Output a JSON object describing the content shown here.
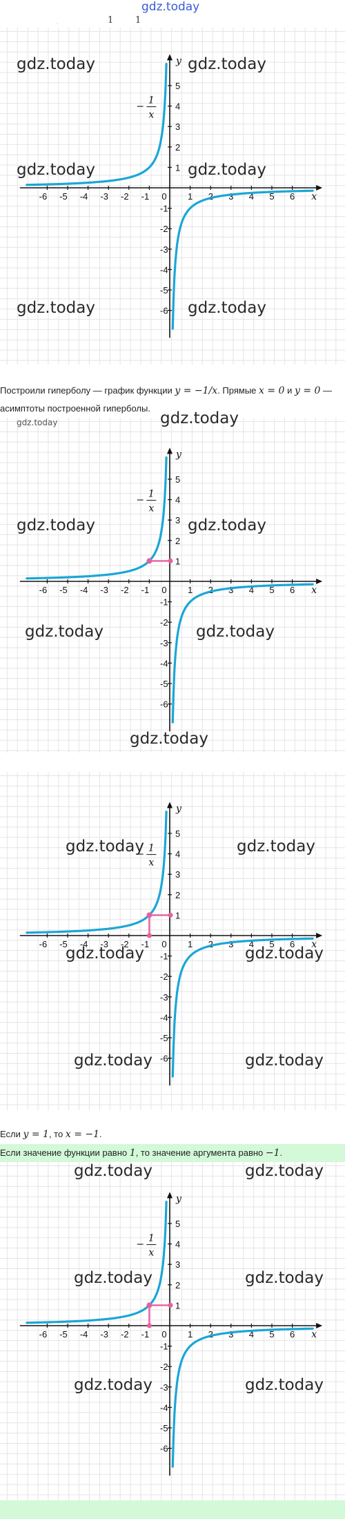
{
  "header": {
    "watermark": "gdz.today",
    "fragments": [
      "1",
      "1"
    ],
    "dot": "·"
  },
  "watermark_text": "gdz.today",
  "caption": {
    "intro": "Построили гиперболу — график функции",
    "func": "y = −1/x",
    "asym_pre": ". Прямые",
    "x0": "x = 0",
    "and": "и",
    "y0": "y = 0",
    "asym_post": "—",
    "line2": "асимптоты построенной гиперболы."
  },
  "statement": {
    "if_text": "Если",
    "y_eq": "y = 1",
    "comma_then": ", то",
    "x_eq": "x = −1",
    "period": ".",
    "conclusion_text": "Если значение функции равно",
    "value": "1",
    "conclusion_mid": ", то значение аргумента равно",
    "answer": "−1",
    "answer_period": "."
  },
  "colors": {
    "curve": "#1ba6d6",
    "highlight": "#e85fa0",
    "band": "#d3f9d8",
    "grid": "#e4e4e4",
    "watermark_top": "#3b5bdb"
  },
  "chart_data": [
    {
      "type": "line",
      "function": "y = -1/x",
      "formula_label": "−1/x",
      "xlabel": "x",
      "ylabel": "y",
      "xlim": [
        -7,
        7
      ],
      "ylim": [
        -7,
        6
      ],
      "xticks": [
        -6,
        -5,
        -4,
        -3,
        -2,
        -1,
        0,
        1,
        2,
        3,
        4,
        5,
        6
      ],
      "yticks": [
        -6,
        -5,
        -4,
        -3,
        -2,
        -1,
        1,
        2,
        3,
        4,
        5
      ],
      "grid": true,
      "legend": "none",
      "series": [
        {
          "values_x": [
            -7,
            -6,
            -5,
            -4,
            -3,
            -2,
            -1.5,
            -1,
            -0.7,
            -0.5,
            -0.35,
            -0.25,
            -0.18
          ],
          "values_y": [
            0.143,
            0.167,
            0.2,
            0.25,
            0.333,
            0.5,
            0.667,
            1,
            1.429,
            2,
            2.857,
            4,
            5.556
          ]
        },
        {
          "values_x": [
            0.15,
            0.2,
            0.25,
            0.35,
            0.5,
            0.7,
            1,
            1.5,
            2,
            3,
            4,
            5,
            6,
            7
          ],
          "values_y": [
            -6.667,
            -5,
            -4,
            -2.857,
            -2,
            -1.429,
            -1,
            -0.667,
            -0.5,
            -0.333,
            -0.25,
            -0.2,
            -0.167,
            -0.143
          ]
        }
      ],
      "highlight_point": null
    },
    {
      "type": "line",
      "function": "y = -1/x",
      "formula_label": "−1/x",
      "xlabel": "x",
      "ylabel": "y",
      "xlim": [
        -7,
        7
      ],
      "ylim": [
        -7,
        6
      ],
      "xticks": [
        -6,
        -5,
        -4,
        -3,
        -2,
        -1,
        0,
        1,
        2,
        3,
        4,
        5,
        6
      ],
      "yticks": [
        -6,
        -5,
        -4,
        -3,
        -2,
        -1,
        1,
        2,
        3,
        4,
        5
      ],
      "grid": true,
      "legend": "none",
      "highlight_point": {
        "x": -1,
        "y": 1,
        "mode": "y-only"
      }
    },
    {
      "type": "line",
      "function": "y = -1/x",
      "formula_label": "−1/x",
      "xlabel": "x",
      "ylabel": "y",
      "xlim": [
        -7,
        7
      ],
      "ylim": [
        -7,
        6
      ],
      "xticks": [
        -6,
        -5,
        -4,
        -3,
        -2,
        -1,
        0,
        1,
        2,
        3,
        4,
        5,
        6
      ],
      "yticks": [
        -6,
        -5,
        -4,
        -3,
        -2,
        -1,
        1,
        2,
        3,
        4,
        5
      ],
      "grid": true,
      "legend": "none",
      "highlight_point": {
        "x": -1,
        "y": 1,
        "mode": "both"
      }
    },
    {
      "type": "line",
      "function": "y = -1/x",
      "formula_label": "−1/x",
      "xlabel": "x",
      "ylabel": "y",
      "xlim": [
        -7,
        7
      ],
      "ylim": [
        -7,
        6
      ],
      "xticks": [
        -6,
        -5,
        -4,
        -3,
        -2,
        -1,
        0,
        1,
        2,
        3,
        4,
        5,
        6
      ],
      "yticks": [
        -6,
        -5,
        -4,
        -3,
        -2,
        -1,
        1,
        2,
        3,
        4,
        5
      ],
      "grid": true,
      "legend": "none",
      "highlight_point": {
        "x": -1,
        "y": 1,
        "mode": "both"
      }
    }
  ]
}
